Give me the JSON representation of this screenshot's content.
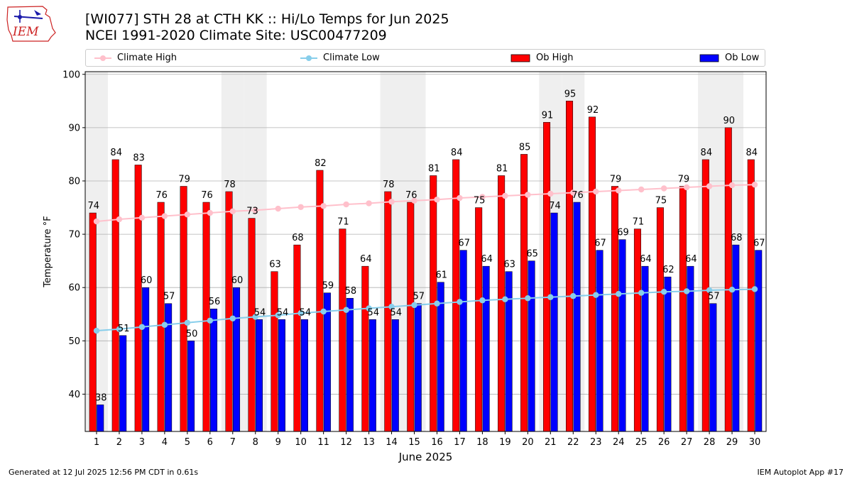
{
  "header": {
    "title_line1": "[WI077] STH 28 at CTH KK  :: Hi/Lo Temps for Jun 2025",
    "title_line2": "NCEI 1991-2020 Climate Site: USC00477209",
    "logo_text": "IEM"
  },
  "footer": {
    "generated": "Generated at 12 Jul 2025 12:56 PM CDT in 0.61s",
    "app": "IEM Autoplot App #17"
  },
  "chart_data": {
    "type": "bar",
    "title": "[WI077] STH 28 at CTH KK  :: Hi/Lo Temps for Jun 2025",
    "subtitle": "NCEI 1991-2020 Climate Site: USC00477209",
    "xlabel": "June 2025",
    "ylabel": "Temperature °F",
    "ylim": [
      33,
      100.5
    ],
    "yticks": [
      40,
      50,
      60,
      70,
      80,
      90,
      100
    ],
    "categories": [
      1,
      2,
      3,
      4,
      5,
      6,
      7,
      8,
      9,
      10,
      11,
      12,
      13,
      14,
      15,
      16,
      17,
      18,
      19,
      20,
      21,
      22,
      23,
      24,
      25,
      26,
      27,
      28,
      29,
      30
    ],
    "weekend_days": [
      1,
      7,
      8,
      14,
      15,
      21,
      22,
      28,
      29
    ],
    "grid": "horizontal",
    "legend_position": "top",
    "series": [
      {
        "name": "Climate High",
        "kind": "line",
        "color": "#ffc0cb",
        "values": [
          72.4,
          72.8,
          73.1,
          73.4,
          73.7,
          74.0,
          74.3,
          74.5,
          74.8,
          75.1,
          75.3,
          75.6,
          75.8,
          76.1,
          76.3,
          76.5,
          76.8,
          77.0,
          77.2,
          77.4,
          77.6,
          77.8,
          78.0,
          78.2,
          78.4,
          78.6,
          78.8,
          79.0,
          79.2,
          79.3
        ]
      },
      {
        "name": "Climate Low",
        "kind": "line",
        "color": "#87ceeb",
        "values": [
          51.9,
          52.2,
          52.6,
          53.0,
          53.4,
          53.8,
          54.2,
          54.5,
          54.8,
          55.2,
          55.5,
          55.8,
          56.1,
          56.4,
          56.7,
          57.0,
          57.3,
          57.6,
          57.8,
          58.0,
          58.2,
          58.4,
          58.6,
          58.8,
          59.0,
          59.2,
          59.3,
          59.5,
          59.6,
          59.7
        ]
      },
      {
        "name": "Ob High",
        "kind": "bar",
        "color": "#ff0000",
        "values": [
          74,
          84,
          83,
          76,
          79,
          76,
          78,
          73,
          63,
          68,
          82,
          71,
          64,
          78,
          76,
          81,
          84,
          75,
          81,
          85,
          91,
          95,
          92,
          79,
          71,
          75,
          79,
          84,
          90,
          84
        ]
      },
      {
        "name": "Ob Low",
        "kind": "bar",
        "color": "#0000ff",
        "values": [
          38,
          51,
          60,
          57,
          50,
          56,
          60,
          54,
          54,
          54,
          59,
          58,
          54,
          54,
          57,
          61,
          67,
          64,
          63,
          65,
          74,
          76,
          67,
          69,
          64,
          62,
          64,
          57,
          68,
          67
        ]
      }
    ]
  }
}
